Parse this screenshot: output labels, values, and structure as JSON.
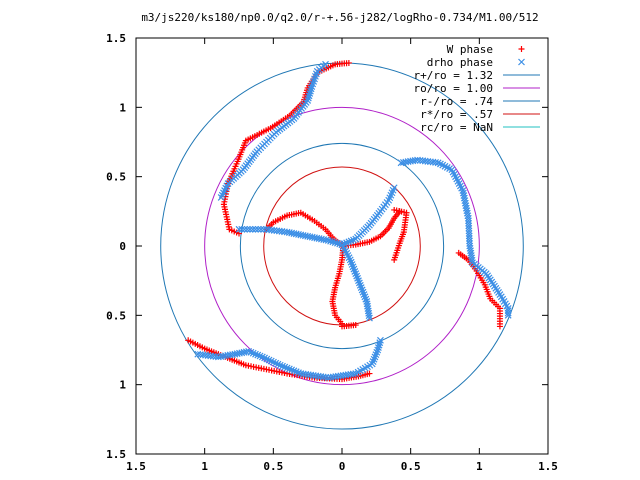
{
  "chart_data": {
    "type": "scatter",
    "title": "m3/js220/ks180/np0.0/q2.0/r-+.56-j282/logRho-0.734/M1.00/512",
    "xlim": [
      -1.5,
      1.5
    ],
    "ylim": [
      -1.5,
      1.5
    ],
    "x_ticks": [
      {
        "value": -1.5,
        "label": "1.5"
      },
      {
        "value": -1.0,
        "label": "1"
      },
      {
        "value": -0.5,
        "label": "0.5"
      },
      {
        "value": 0.0,
        "label": "0"
      },
      {
        "value": 0.5,
        "label": "0.5"
      },
      {
        "value": 1.0,
        "label": "1"
      },
      {
        "value": 1.5,
        "label": "1.5"
      }
    ],
    "y_ticks": [
      {
        "value": 1.5,
        "label": "1.5"
      },
      {
        "value": 1.0,
        "label": "1"
      },
      {
        "value": 0.5,
        "label": "0.5"
      },
      {
        "value": 0.0,
        "label": "0"
      },
      {
        "value": -0.5,
        "label": "0.5"
      },
      {
        "value": -1.0,
        "label": "1"
      },
      {
        "value": -1.5,
        "label": "1.5"
      }
    ],
    "legend_position": "top-right",
    "series": [
      {
        "name": "W phase",
        "kind": "points",
        "marker": "+",
        "color": "#ff0000",
        "arms": [
          [
            [
              0.01,
              0.0
            ],
            [
              0.1,
              0.01
            ],
            [
              0.2,
              0.03
            ],
            [
              0.28,
              0.07
            ],
            [
              0.34,
              0.13
            ],
            [
              0.38,
              0.2
            ],
            [
              0.42,
              0.25
            ]
          ],
          [
            [
              0.01,
              0.0
            ],
            [
              0.0,
              -0.1
            ],
            [
              -0.02,
              -0.2
            ],
            [
              -0.05,
              -0.3
            ],
            [
              -0.07,
              -0.4
            ],
            [
              -0.05,
              -0.5
            ],
            [
              0.0,
              -0.56
            ]
          ],
          [
            [
              0.01,
              0.0
            ],
            [
              -0.06,
              0.05
            ],
            [
              -0.12,
              0.12
            ],
            [
              -0.2,
              0.18
            ],
            [
              -0.3,
              0.24
            ],
            [
              -0.4,
              0.22
            ],
            [
              -0.5,
              0.17
            ],
            [
              -0.55,
              0.12
            ]
          ],
          [
            [
              0.0,
              -0.58
            ],
            [
              0.1,
              -0.57
            ]
          ],
          [
            [
              0.38,
              0.26
            ],
            [
              0.47,
              0.24
            ],
            [
              0.45,
              0.1
            ],
            [
              0.42,
              0.02
            ],
            [
              0.38,
              -0.1
            ]
          ],
          [
            [
              0.85,
              -0.05
            ],
            [
              0.92,
              -0.1
            ],
            [
              0.98,
              -0.18
            ],
            [
              1.04,
              -0.28
            ],
            [
              1.08,
              -0.38
            ],
            [
              1.15,
              -0.45
            ],
            [
              1.15,
              -0.58
            ]
          ],
          [
            [
              -0.75,
              0.09
            ],
            [
              -0.82,
              0.12
            ],
            [
              -0.86,
              0.3
            ],
            [
              -0.83,
              0.45
            ],
            [
              -0.76,
              0.61
            ],
            [
              -0.7,
              0.76
            ],
            [
              -0.52,
              0.85
            ],
            [
              -0.38,
              0.94
            ],
            [
              -0.28,
              1.04
            ],
            [
              -0.25,
              1.14
            ],
            [
              -0.18,
              1.25
            ],
            [
              -0.05,
              1.31
            ],
            [
              0.05,
              1.32
            ]
          ],
          [
            [
              -1.12,
              -0.68
            ],
            [
              -1.0,
              -0.74
            ],
            [
              -0.85,
              -0.8
            ],
            [
              -0.7,
              -0.86
            ],
            [
              -0.55,
              -0.89
            ],
            [
              -0.4,
              -0.92
            ],
            [
              -0.2,
              -0.95
            ],
            [
              0.0,
              -0.96
            ],
            [
              0.12,
              -0.94
            ],
            [
              0.2,
              -0.92
            ]
          ]
        ]
      },
      {
        "name": "drho phase",
        "kind": "points",
        "marker": "x",
        "color": "#3c8fe6",
        "arms": [
          [
            [
              0.0,
              0.01
            ],
            [
              0.1,
              0.05
            ],
            [
              0.2,
              0.15
            ],
            [
              0.28,
              0.25
            ],
            [
              0.34,
              0.33
            ],
            [
              0.38,
              0.42
            ]
          ],
          [
            [
              0.0,
              0.01
            ],
            [
              -0.1,
              0.04
            ],
            [
              -0.2,
              0.06
            ],
            [
              -0.3,
              0.08
            ],
            [
              -0.4,
              0.1
            ],
            [
              -0.55,
              0.12
            ],
            [
              -0.75,
              0.12
            ]
          ],
          [
            [
              0.0,
              0.01
            ],
            [
              0.06,
              -0.1
            ],
            [
              0.1,
              -0.2
            ],
            [
              0.14,
              -0.3
            ],
            [
              0.18,
              -0.4
            ],
            [
              0.2,
              -0.52
            ]
          ],
          [
            [
              0.43,
              0.6
            ],
            [
              0.55,
              0.62
            ],
            [
              0.7,
              0.6
            ],
            [
              0.8,
              0.55
            ],
            [
              0.88,
              0.4
            ],
            [
              0.92,
              0.2
            ],
            [
              0.93,
              0.0
            ],
            [
              0.95,
              -0.12
            ],
            [
              1.05,
              -0.2
            ],
            [
              1.15,
              -0.35
            ],
            [
              1.21,
              -0.45
            ],
            [
              1.21,
              -0.5
            ]
          ],
          [
            [
              -0.88,
              0.35
            ],
            [
              -0.83,
              0.45
            ],
            [
              -0.72,
              0.55
            ],
            [
              -0.62,
              0.68
            ],
            [
              -0.48,
              0.82
            ],
            [
              -0.35,
              0.92
            ],
            [
              -0.25,
              1.05
            ],
            [
              -0.22,
              1.15
            ],
            [
              -0.18,
              1.26
            ],
            [
              -0.12,
              1.31
            ]
          ],
          [
            [
              -1.05,
              -0.78
            ],
            [
              -0.9,
              -0.8
            ],
            [
              -0.78,
              -0.78
            ],
            [
              -0.68,
              -0.76
            ],
            [
              -0.58,
              -0.8
            ],
            [
              -0.45,
              -0.86
            ],
            [
              -0.3,
              -0.92
            ],
            [
              -0.1,
              -0.95
            ],
            [
              0.1,
              -0.92
            ],
            [
              0.22,
              -0.85
            ],
            [
              0.26,
              -0.75
            ],
            [
              0.28,
              -0.68
            ]
          ]
        ]
      },
      {
        "name": "r+/ro = 1.32",
        "kind": "circle",
        "r": 1.32,
        "color": "#1f77b4"
      },
      {
        "name": "ro/ro = 1.00",
        "kind": "circle",
        "r": 1.0,
        "color": "#b020c8"
      },
      {
        "name": "r-/ro = .74",
        "kind": "circle",
        "r": 0.74,
        "color": "#1f77b4"
      },
      {
        "name": "r*/ro = .57",
        "kind": "circle",
        "r": 0.57,
        "color": "#d01010"
      },
      {
        "name": "rc/ro = NaN",
        "kind": "circle",
        "r": null,
        "color": "#20c0c0"
      }
    ]
  }
}
